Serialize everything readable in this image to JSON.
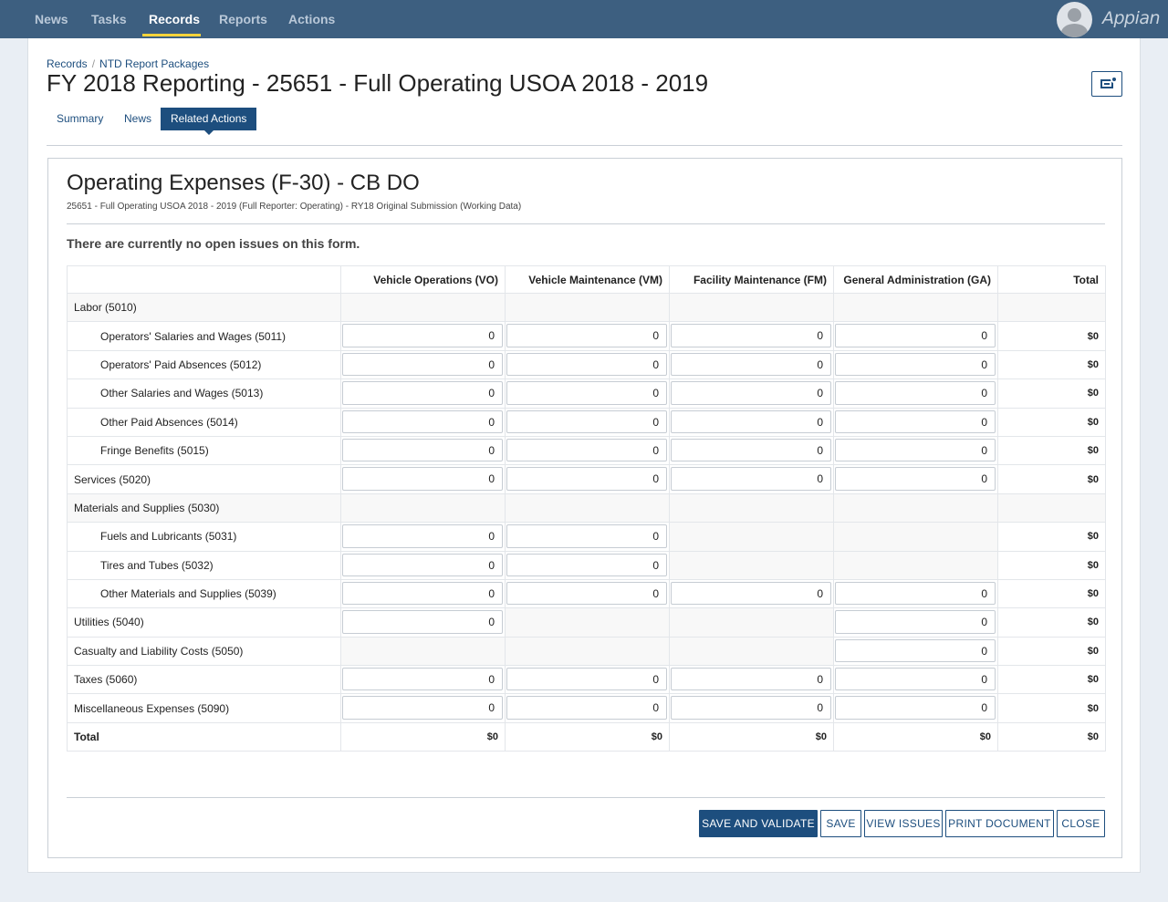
{
  "topnav": {
    "items": [
      "News",
      "Tasks",
      "Records",
      "Reports",
      "Actions"
    ],
    "active": "Records",
    "brand": "Appian",
    "accent_color": "#f5d33a",
    "bar_color": "#3d5f80"
  },
  "breadcrumb": [
    "Records",
    "NTD Report Packages"
  ],
  "page_title": "FY 2018 Reporting - 25651 - Full Operating USOA 2018 - 2019",
  "tabs": [
    "Summary",
    "News",
    "Related Actions"
  ],
  "active_tab": "Related Actions",
  "form": {
    "title": "Operating Expenses (F-30) - CB DO",
    "subtitle": "25651 - Full Operating USOA 2018 - 2019 (Full Reporter: Operating) - RY18 Original Submission (Working Data)",
    "issues_message": "There are currently no open issues on this form.",
    "columns": [
      "",
      "Vehicle Operations (VO)",
      "Vehicle Maintenance (VM)",
      "Facility Maintenance (FM)",
      "General Administration (GA)",
      "Total"
    ],
    "rows": [
      {
        "label": "Labor (5010)",
        "indent": false,
        "group": true,
        "values": [
          null,
          null,
          null,
          null
        ],
        "total": ""
      },
      {
        "label": "Operators' Salaries and Wages (5011)",
        "indent": true,
        "values": [
          "0",
          "0",
          "0",
          "0"
        ],
        "total": "$0"
      },
      {
        "label": "Operators' Paid Absences (5012)",
        "indent": true,
        "values": [
          "0",
          "0",
          "0",
          "0"
        ],
        "total": "$0"
      },
      {
        "label": "Other Salaries and Wages (5013)",
        "indent": true,
        "values": [
          "0",
          "0",
          "0",
          "0"
        ],
        "total": "$0"
      },
      {
        "label": "Other Paid Absences (5014)",
        "indent": true,
        "values": [
          "0",
          "0",
          "0",
          "0"
        ],
        "total": "$0"
      },
      {
        "label": "Fringe Benefits (5015)",
        "indent": true,
        "values": [
          "0",
          "0",
          "0",
          "0"
        ],
        "total": "$0"
      },
      {
        "label": "Services (5020)",
        "indent": false,
        "values": [
          "0",
          "0",
          "0",
          "0"
        ],
        "total": "$0"
      },
      {
        "label": "Materials and Supplies (5030)",
        "indent": false,
        "group": true,
        "values": [
          null,
          null,
          null,
          null
        ],
        "total": ""
      },
      {
        "label": "Fuels and Lubricants (5031)",
        "indent": true,
        "values": [
          "0",
          "0",
          null,
          null
        ],
        "total": "$0"
      },
      {
        "label": "Tires and Tubes (5032)",
        "indent": true,
        "values": [
          "0",
          "0",
          null,
          null
        ],
        "total": "$0"
      },
      {
        "label": "Other Materials and Supplies (5039)",
        "indent": true,
        "values": [
          "0",
          "0",
          "0",
          "0"
        ],
        "total": "$0"
      },
      {
        "label": "Utilities (5040)",
        "indent": false,
        "values": [
          "0",
          null,
          null,
          "0"
        ],
        "total": "$0"
      },
      {
        "label": "Casualty and Liability Costs (5050)",
        "indent": false,
        "values": [
          null,
          null,
          null,
          "0"
        ],
        "total": "$0"
      },
      {
        "label": "Taxes (5060)",
        "indent": false,
        "values": [
          "0",
          "0",
          "0",
          "0"
        ],
        "total": "$0"
      },
      {
        "label": "Miscellaneous Expenses (5090)",
        "indent": false,
        "values": [
          "0",
          "0",
          "0",
          "0"
        ],
        "total": "$0"
      }
    ],
    "total_row": {
      "label": "Total",
      "values": [
        "$0",
        "$0",
        "$0",
        "$0"
      ],
      "total": "$0"
    }
  },
  "buttons": {
    "save_and_validate": "SAVE AND VALIDATE",
    "save": "SAVE",
    "view_issues": "VIEW ISSUES",
    "print_document": "PRINT DOCUMENT",
    "close": "CLOSE"
  },
  "icons": {
    "avatar": "user-avatar-icon",
    "header_action": "document-settings-icon"
  }
}
